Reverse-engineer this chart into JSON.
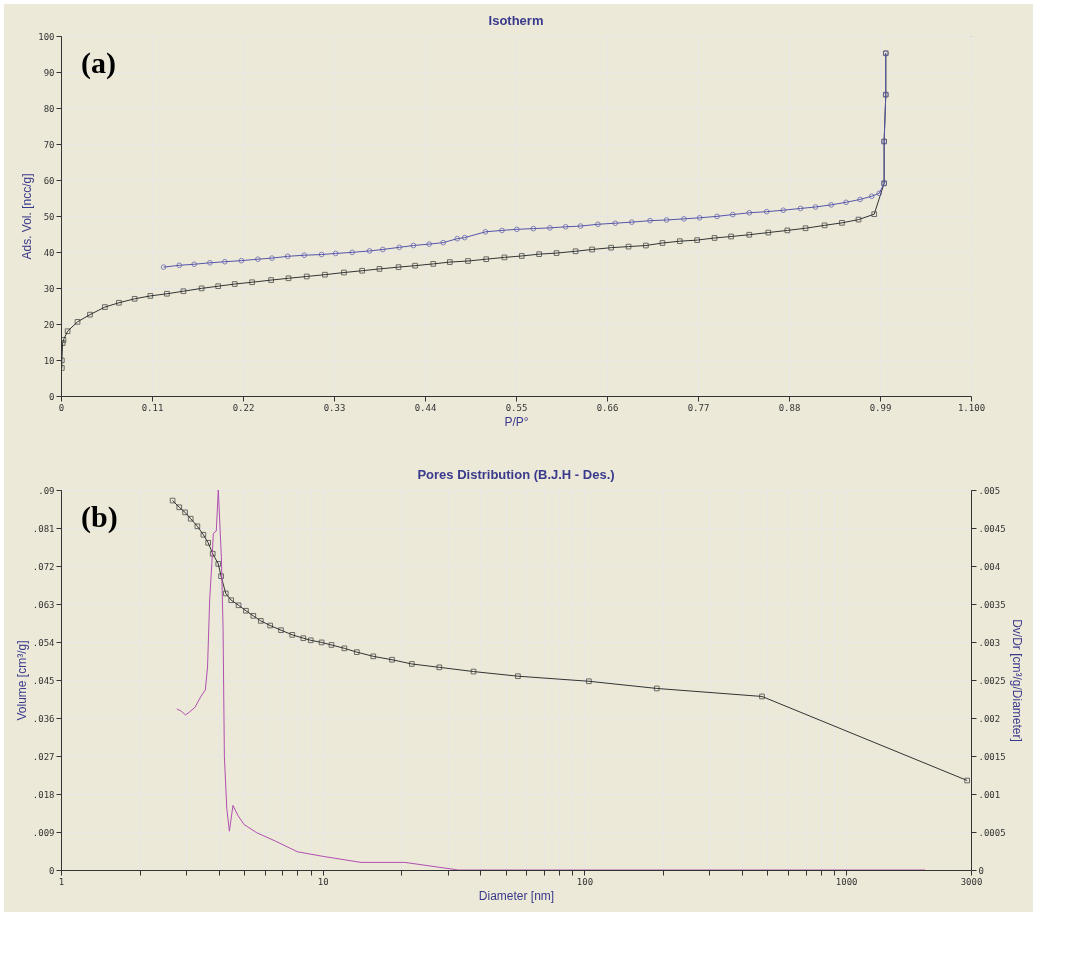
{
  "chart_data": [
    {
      "type": "line",
      "title": "Isotherm",
      "xlabel": "P/P°",
      "ylabel": "Ads. Vol. [ncc/g]",
      "annotations": [
        "(a)"
      ],
      "grid": true,
      "xlim": [
        0,
        1.1
      ],
      "xticks": [
        0,
        0.11,
        0.22,
        0.33,
        0.44,
        0.55,
        0.66,
        0.77,
        0.88,
        0.99,
        {
          "value": 1.1,
          "label": "1.100"
        }
      ],
      "ylim": [
        0,
        100
      ],
      "yticks": [
        0,
        10,
        20,
        30,
        40,
        50,
        60,
        70,
        80,
        90,
        100
      ],
      "series": [
        {
          "color": "#333333",
          "marker": "square",
          "x": [
            0.001,
            0.001,
            0.002,
            0.003,
            0.008,
            0.02,
            0.035,
            0.053,
            0.07,
            0.089,
            0.108,
            0.128,
            0.148,
            0.17,
            0.19,
            0.21,
            0.231,
            0.254,
            0.275,
            0.297,
            0.319,
            0.342,
            0.364,
            0.385,
            0.408,
            0.428,
            0.45,
            0.47,
            0.492,
            0.514,
            0.536,
            0.557,
            0.578,
            0.599,
            0.622,
            0.642,
            0.665,
            0.686,
            0.707,
            0.727,
            0.748,
            0.769,
            0.79,
            0.81,
            0.832,
            0.855,
            0.878,
            0.9,
            0.923,
            0.944,
            0.964,
            0.983,
            0.995,
            0.995,
            0.997,
            0.997
          ],
          "values": [
            7.8,
            9.9,
            14.7,
            15.6,
            18,
            20.6,
            22.6,
            24.7,
            25.9,
            27,
            27.8,
            28.4,
            29.1,
            29.9,
            30.5,
            31.1,
            31.6,
            32.2,
            32.7,
            33.2,
            33.7,
            34.3,
            34.8,
            35.3,
            35.8,
            36.2,
            36.7,
            37.2,
            37.5,
            38,
            38.5,
            38.9,
            39.4,
            39.7,
            40.2,
            40.7,
            41.2,
            41.5,
            41.8,
            42.5,
            43,
            43.3,
            43.9,
            44.3,
            44.8,
            45.4,
            46,
            46.6,
            47.4,
            48.1,
            49,
            50.5,
            59.1,
            70.7,
            83.7,
            95.2
          ]
        },
        {
          "color": "#5555aa",
          "marker": "circle",
          "x": [
            0.997,
            0.997,
            0.995,
            0.995,
            0.989,
            0.98,
            0.966,
            0.949,
            0.931,
            0.912,
            0.894,
            0.873,
            0.853,
            0.832,
            0.812,
            0.793,
            0.772,
            0.753,
            0.732,
            0.712,
            0.69,
            0.67,
            0.649,
            0.628,
            0.61,
            0.591,
            0.571,
            0.551,
            0.533,
            0.513,
            0.488,
            0.479,
            0.462,
            0.445,
            0.426,
            0.409,
            0.389,
            0.373,
            0.352,
            0.332,
            0.315,
            0.294,
            0.274,
            0.255,
            0.238,
            0.218,
            0.198,
            0.18,
            0.161,
            0.143,
            0.124
          ],
          "values": [
            95.2,
            83.7,
            70.7,
            59,
            56.3,
            55.5,
            54.6,
            53.8,
            53.1,
            52.5,
            52.1,
            51.6,
            51.2,
            50.9,
            50.4,
            49.9,
            49.5,
            49.2,
            48.9,
            48.7,
            48.3,
            48,
            47.7,
            47.2,
            47,
            46.7,
            46.5,
            46.3,
            46,
            45.6,
            44,
            43.7,
            42.6,
            42.2,
            41.8,
            41.3,
            40.7,
            40.3,
            39.9,
            39.6,
            39.3,
            39.1,
            38.8,
            38.3,
            38,
            37.6,
            37.3,
            37,
            36.6,
            36.3,
            35.8
          ]
        }
      ]
    },
    {
      "type": "line",
      "title": "Pores Distribution (B.J.H - Des.)",
      "xlabel": "Diameter [nm]",
      "ylabel": "Volume [cm³/g]",
      "y2label": "Dv/Dr [cm³/g/Diameter]",
      "annotations": [
        "(b)"
      ],
      "grid": true,
      "log": "x",
      "xlim": [
        1,
        3000
      ],
      "xticks": [
        1,
        {
          "value": 2,
          "label": null
        },
        {
          "value": 3,
          "label": null
        },
        {
          "value": 4,
          "label": null
        },
        {
          "value": 5,
          "label": null
        },
        {
          "value": 6,
          "label": null
        },
        {
          "value": 7,
          "label": null
        },
        {
          "value": 8,
          "label": null
        },
        {
          "value": 9,
          "label": null
        },
        10,
        {
          "value": 20,
          "label": null
        },
        {
          "value": 30,
          "label": null
        },
        {
          "value": 40,
          "label": null
        },
        {
          "value": 50,
          "label": null
        },
        {
          "value": 60,
          "label": null
        },
        {
          "value": 70,
          "label": null
        },
        {
          "value": 80,
          "label": null
        },
        {
          "value": 90,
          "label": null
        },
        100,
        {
          "value": 200,
          "label": null
        },
        {
          "value": 300,
          "label": null
        },
        {
          "value": 400,
          "label": null
        },
        {
          "value": 500,
          "label": null
        },
        {
          "value": 600,
          "label": null
        },
        {
          "value": 700,
          "label": null
        },
        {
          "value": 800,
          "label": null
        },
        {
          "value": 900,
          "label": null
        },
        1000,
        3000
      ],
      "ylim": [
        0,
        0.09
      ],
      "yticks": [
        0,
        {
          "value": 0.009,
          "label": ".009"
        },
        {
          "value": 0.018,
          "label": ".018"
        },
        {
          "value": 0.027,
          "label": ".027"
        },
        {
          "value": 0.036,
          "label": ".036"
        },
        {
          "value": 0.045,
          "label": ".045"
        },
        {
          "value": 0.054,
          "label": ".054"
        },
        {
          "value": 0.063,
          "label": ".063"
        },
        {
          "value": 0.072,
          "label": ".072"
        },
        {
          "value": 0.081,
          "label": ".081"
        },
        {
          "value": 0.09,
          "label": ".09"
        }
      ],
      "y2lim": [
        0,
        0.005
      ],
      "y2ticks": [
        0,
        {
          "value": 0.0005,
          "label": ".0005"
        },
        {
          "value": 0.001,
          "label": ".001"
        },
        {
          "value": 0.0015,
          "label": ".0015"
        },
        {
          "value": 0.002,
          "label": ".002"
        },
        {
          "value": 0.0025,
          "label": ".0025"
        },
        {
          "value": 0.003,
          "label": ".003"
        },
        {
          "value": 0.0035,
          "label": ".0035"
        },
        {
          "value": 0.004,
          "label": ".004"
        },
        {
          "value": 0.0045,
          "label": ".0045"
        },
        {
          "value": 0.005,
          "label": ".005"
        }
      ],
      "series": [
        {
          "color": "#333333",
          "marker": "square",
          "x": [
            2.67,
            2.83,
            2.98,
            3.13,
            3.32,
            3.5,
            3.65,
            3.8,
            3.99,
            4.09,
            4.26,
            4.47,
            4.77,
            5.09,
            5.43,
            5.8,
            6.3,
            6.93,
            7.65,
            8.43,
            9,
            9.9,
            10.8,
            12.1,
            13.5,
            15.6,
            18.4,
            21.9,
            27.9,
            37.7,
            55.7,
            104,
            189,
            477,
            2900
          ],
          "values": [
            0.0875,
            0.0859,
            0.0847,
            0.0832,
            0.0814,
            0.0794,
            0.0775,
            0.0749,
            0.0725,
            0.0696,
            0.0655,
            0.0639,
            0.0627,
            0.0614,
            0.0602,
            0.059,
            0.0579,
            0.0568,
            0.0557,
            0.0549,
            0.0544,
            0.0539,
            0.0533,
            0.0525,
            0.0516,
            0.0506,
            0.0498,
            0.0488,
            0.048,
            0.047,
            0.0459,
            0.0447,
            0.043,
            0.0411,
            0.0212
          ]
        },
        {
          "color": "#b050b0",
          "marker": "none",
          "axis": "y2",
          "x": [
            2.77,
            2.88,
            2.99,
            3.1,
            3.25,
            3.42,
            3.56,
            3.63,
            3.7,
            3.77,
            3.82,
            3.92,
            3.99,
            4.1,
            4.16,
            4.21,
            4.3,
            4.4,
            4.54,
            4.74,
            5.0,
            5.6,
            6.6,
            8.0,
            10,
            14,
            20.6,
            33,
            2000
          ],
          "values": [
            0.00212,
            0.00209,
            0.00204,
            0.00208,
            0.00214,
            0.00228,
            0.00237,
            0.00267,
            0.00357,
            0.00403,
            0.00443,
            0.00446,
            0.005,
            0.00412,
            0.00321,
            0.00149,
            0.00081,
            0.00051,
            0.00085,
            0.00072,
            0.0006,
            0.00049,
            0.00038,
            0.00024,
            0.00018,
            0.0001,
            0.0001,
            0,
            0
          ]
        }
      ]
    }
  ]
}
